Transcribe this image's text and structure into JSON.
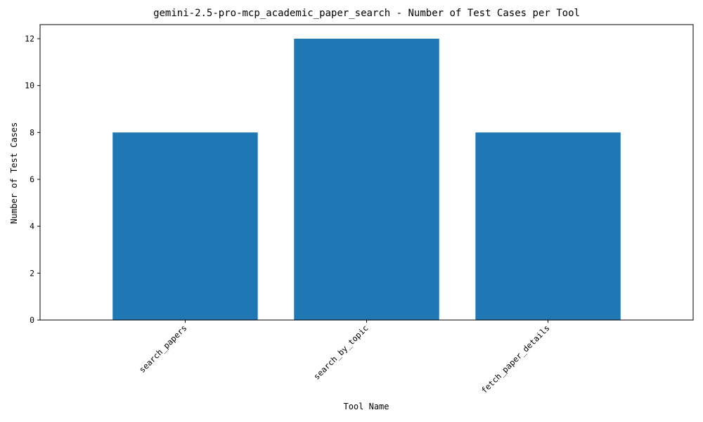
{
  "chart_data": {
    "type": "bar",
    "title": "gemini-2.5-pro-mcp_academic_paper_search - Number of Test Cases per Tool",
    "xlabel": "Tool Name",
    "ylabel": "Number of Test Cases",
    "categories": [
      "search_papers",
      "search_by_topic",
      "fetch_paper_details"
    ],
    "values": [
      8,
      12,
      8
    ],
    "ylim": [
      0,
      12.6
    ],
    "yticks": [
      0,
      2,
      4,
      6,
      8,
      10,
      12
    ],
    "bar_color": "#1f77b4",
    "grid": false,
    "legend": "none"
  }
}
